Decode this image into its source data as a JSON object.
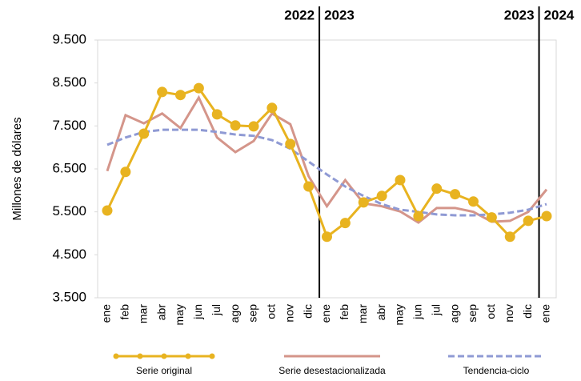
{
  "chart_data": {
    "type": "line",
    "y_label": "Millones de dólares",
    "categories": [
      "ene",
      "feb",
      "mar",
      "abr",
      "may",
      "jun",
      "jul",
      "ago",
      "sep",
      "oct",
      "nov",
      "dic",
      "ene",
      "feb",
      "mar",
      "abr",
      "may",
      "jun",
      "jul",
      "ago",
      "sep",
      "oct",
      "nov",
      "dic",
      "ene"
    ],
    "series": [
      {
        "name": "Serie original",
        "color": "#e8b320",
        "markers": true,
        "dash": false,
        "values": [
          5530,
          6430,
          7320,
          8290,
          8220,
          8380,
          7770,
          7510,
          7490,
          7920,
          7080,
          6090,
          4920,
          5240,
          5720,
          5870,
          6240,
          5400,
          6040,
          5910,
          5740,
          5370,
          4920,
          5290,
          5400
        ]
      },
      {
        "name": "Serie desestacionalizada",
        "color": "#d4958a",
        "markers": false,
        "dash": false,
        "values": [
          6450,
          7750,
          7560,
          7790,
          7450,
          8160,
          7230,
          6890,
          7150,
          7790,
          7540,
          6330,
          5630,
          6240,
          5700,
          5630,
          5510,
          5250,
          5590,
          5590,
          5500,
          5270,
          5290,
          5500,
          6020
        ]
      },
      {
        "name": "Tendencia-ciclo",
        "color": "#8f9ad4",
        "markers": false,
        "dash": true,
        "values": [
          7060,
          7230,
          7360,
          7410,
          7410,
          7410,
          7360,
          7300,
          7270,
          7170,
          6970,
          6670,
          6370,
          6090,
          5870,
          5680,
          5550,
          5500,
          5440,
          5420,
          5420,
          5440,
          5480,
          5550,
          5680
        ]
      }
    ],
    "ylim": [
      3500,
      9500
    ],
    "yticks": [
      {
        "value": 3500,
        "label": "3.500"
      },
      {
        "value": 4500,
        "label": "4.500"
      },
      {
        "value": 5500,
        "label": "5.500"
      },
      {
        "value": 6500,
        "label": "6.500"
      },
      {
        "value": 7500,
        "label": "7.500"
      },
      {
        "value": 8500,
        "label": "8.500"
      },
      {
        "value": 9500,
        "label": "9.500"
      }
    ],
    "annotations": [
      {
        "left": "2022",
        "right": "2023"
      },
      {
        "left": "2023",
        "right": "2024"
      }
    ],
    "legend": "bottom"
  }
}
